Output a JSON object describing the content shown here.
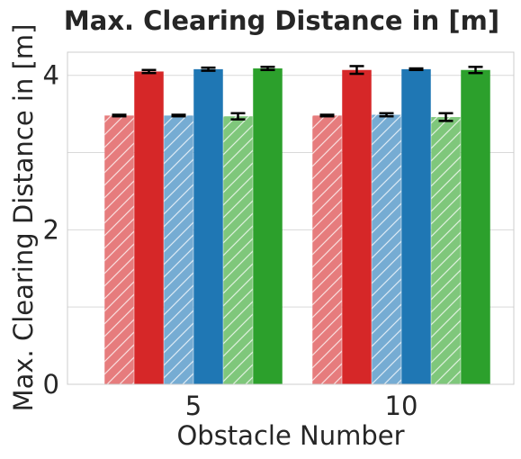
{
  "chart_data": {
    "type": "bar",
    "title": "Max. Clearing Distance in [m]",
    "xlabel": "Obstacle Number",
    "ylabel": "Max. Clearing Distance in [m]",
    "categories": [
      "5",
      "10"
    ],
    "ylim": [
      0,
      4.3
    ],
    "yticks": [
      "0",
      "2",
      "4"
    ],
    "grid": true,
    "legend": "none",
    "series": [
      {
        "color": "#e67c7d",
        "hatched": true,
        "values": [
          3.48,
          3.48
        ],
        "errors": [
          0.01,
          0.01
        ]
      },
      {
        "color": "#d62728",
        "hatched": false,
        "values": [
          4.05,
          4.07
        ],
        "errors": [
          0.02,
          0.05
        ]
      },
      {
        "color": "#76acd3",
        "hatched": true,
        "values": [
          3.48,
          3.49
        ],
        "errors": [
          0.01,
          0.02
        ]
      },
      {
        "color": "#1f77b4",
        "hatched": false,
        "values": [
          4.08,
          4.08
        ],
        "errors": [
          0.02,
          0.01
        ]
      },
      {
        "color": "#7fc77b",
        "hatched": true,
        "values": [
          3.47,
          3.46
        ],
        "errors": [
          0.04,
          0.05
        ]
      },
      {
        "color": "#2ca02c",
        "hatched": false,
        "values": [
          4.09,
          4.07
        ],
        "errors": [
          0.02,
          0.04
        ]
      }
    ]
  }
}
